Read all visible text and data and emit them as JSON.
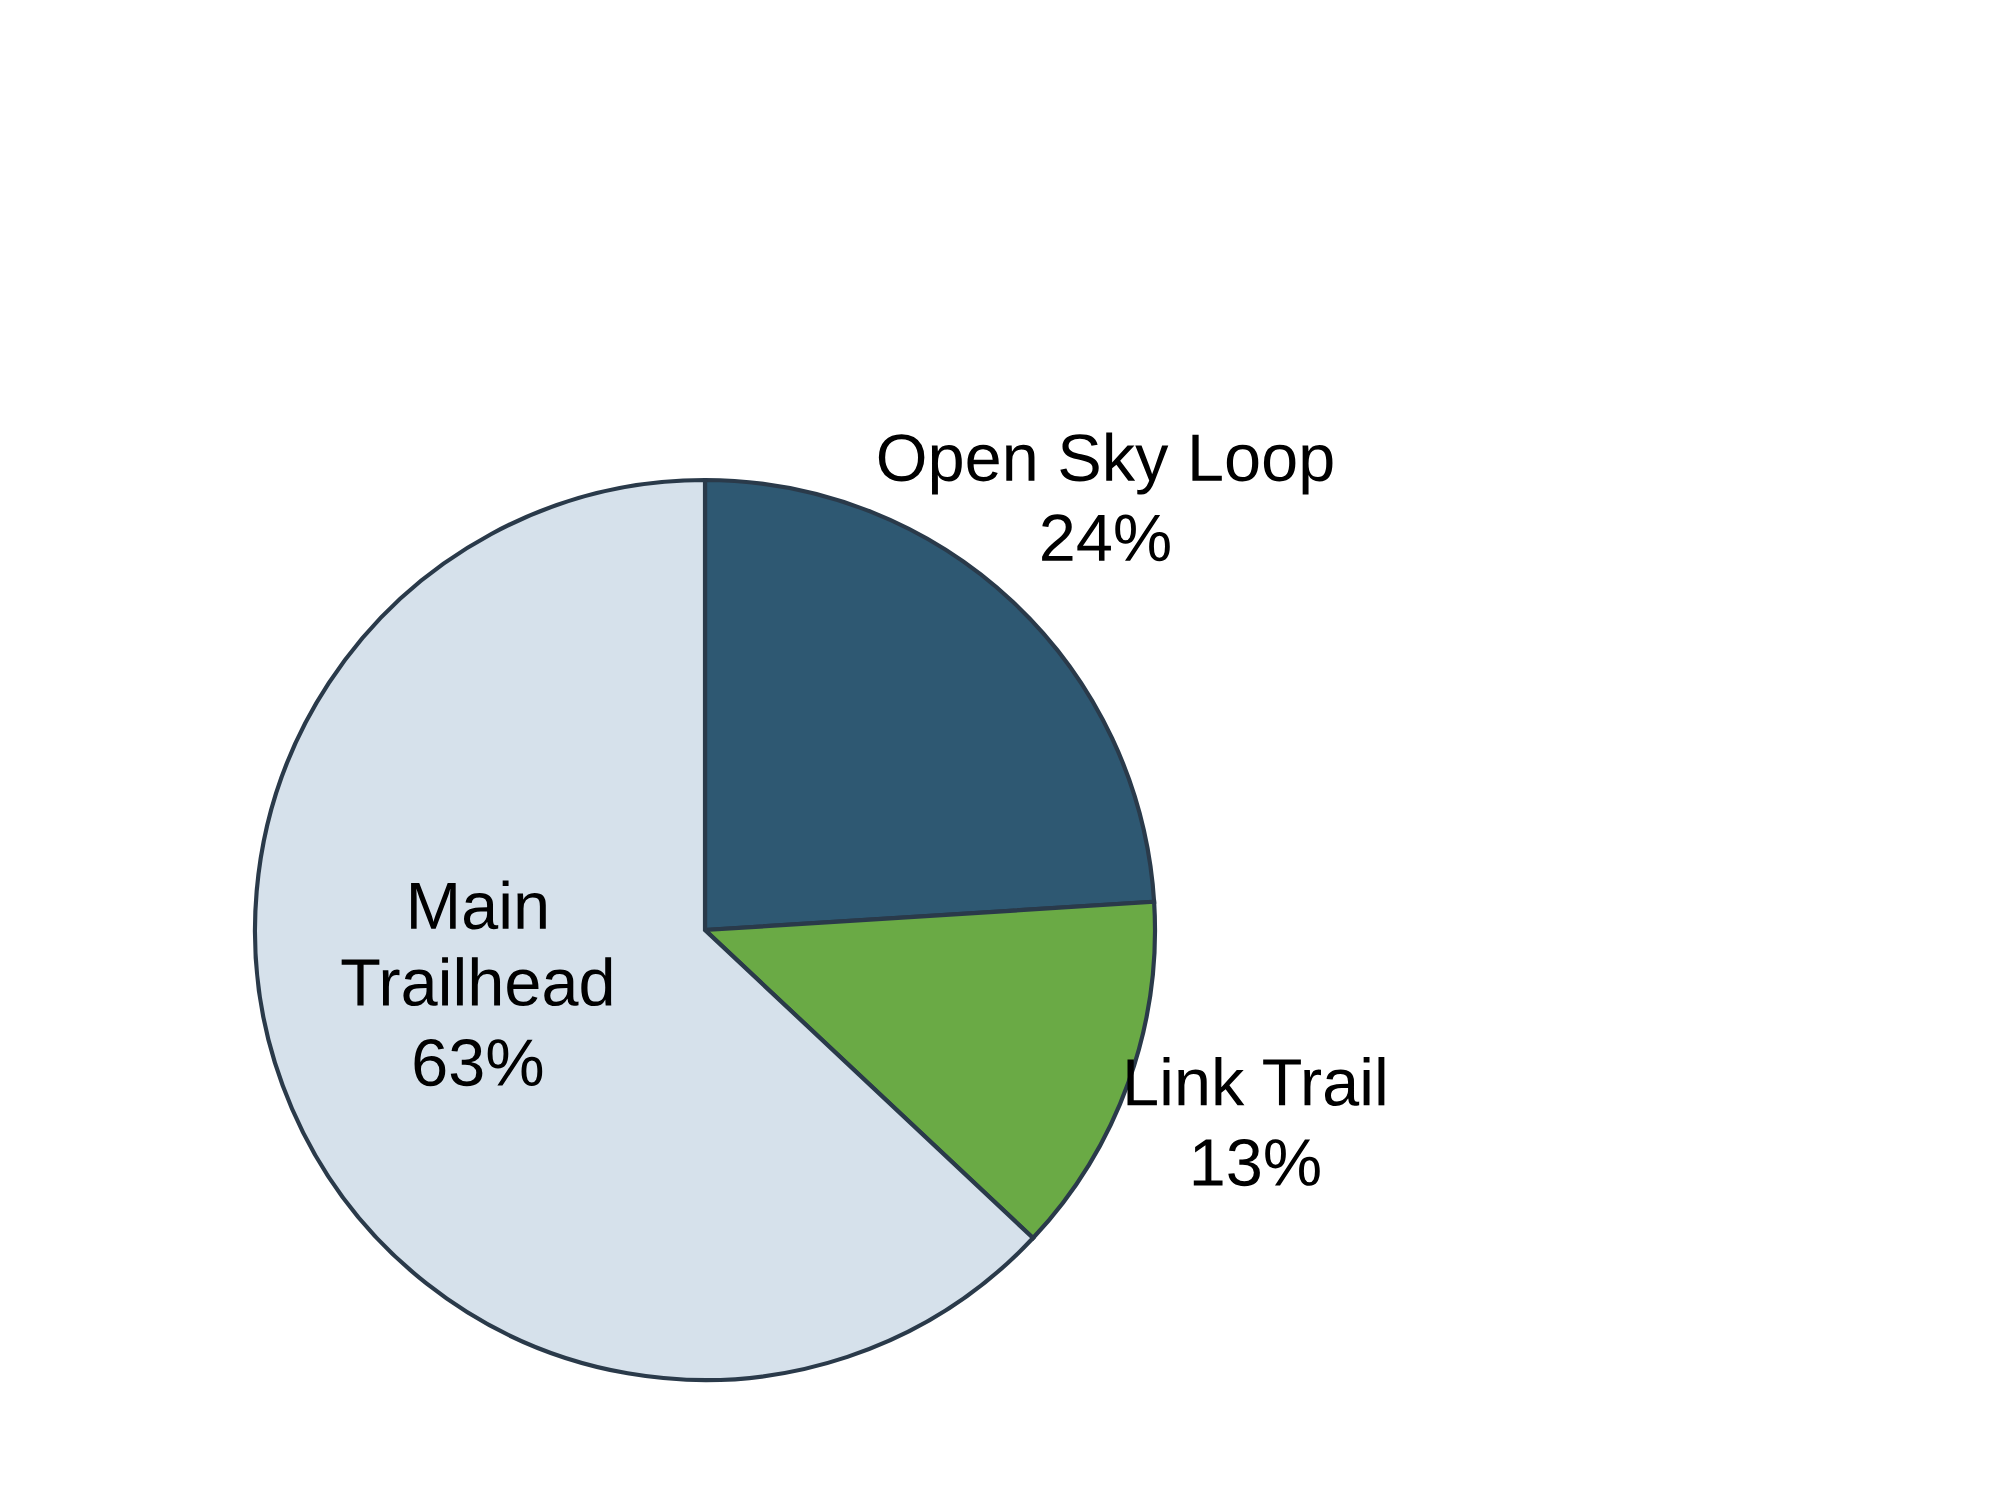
{
  "chart_data": {
    "type": "pie",
    "categories": [
      "Open Sky Loop",
      "Link Trail",
      "Main Trailhead"
    ],
    "values": [
      24,
      13,
      63
    ],
    "colors": [
      "#2e5872",
      "#6aaa45",
      "#d6e1eb"
    ],
    "value_labels": [
      "24%",
      "13%",
      "63%"
    ]
  }
}
